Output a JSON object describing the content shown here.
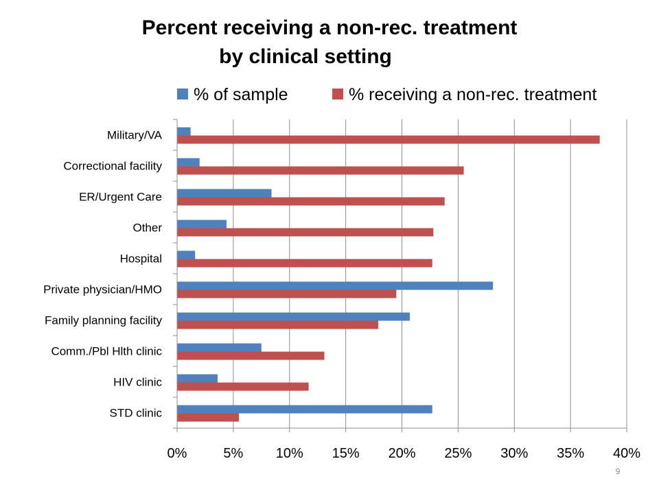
{
  "slide": {
    "page_number": "9"
  },
  "chart_data": {
    "type": "bar",
    "orientation": "horizontal",
    "title_lines": [
      "Percent receiving a non-rec. treatment",
      "by clinical setting"
    ],
    "categories": [
      "Military/VA",
      "Correctional facility",
      "ER/Urgent Care",
      "Other",
      "Hospital",
      "Private physician/HMO",
      "Family planning facility",
      "Comm./Pbl Hlth clinic",
      "HIV clinic",
      "STD clinic"
    ],
    "series": [
      {
        "name": "% of sample",
        "color": "#4f81bd",
        "values": [
          1.2,
          2.0,
          8.4,
          4.4,
          1.6,
          28.1,
          20.7,
          7.5,
          3.6,
          22.7
        ]
      },
      {
        "name": "% receiving a non-rec. treatment",
        "color": "#c0504d",
        "values": [
          37.6,
          25.5,
          23.8,
          22.8,
          22.7,
          19.5,
          17.9,
          13.1,
          11.7,
          5.5
        ]
      }
    ],
    "xlim": [
      0,
      40
    ],
    "x_ticks": [
      0,
      5,
      10,
      15,
      20,
      25,
      30,
      35,
      40
    ],
    "x_tick_labels": [
      "0%",
      "5%",
      "10%",
      "15%",
      "20%",
      "25%",
      "30%",
      "35%",
      "40%"
    ],
    "xlabel": "",
    "ylabel": "",
    "grid": true,
    "legend_position": "top"
  }
}
